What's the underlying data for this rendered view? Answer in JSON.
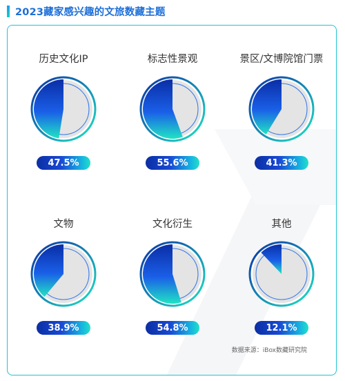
{
  "title": "2023藏家感兴趣的文旅数藏主题",
  "source": "数据来源：iBox数藏研究院",
  "colors": {
    "accent": "#1c6fd8",
    "border": "#22c2d2",
    "pie_dark": "#0a2ea6",
    "pie_blue": "#1a5fe8",
    "pie_teal": "#20e3c4",
    "pie_rest": "#e4e4e4"
  },
  "chart_data": {
    "type": "pie",
    "title": "2023藏家感兴趣的文旅数藏主题",
    "items": [
      {
        "label": "历史文化IP",
        "value": 47.5,
        "value_label": "47.5%"
      },
      {
        "label": "标志性景观",
        "value": 55.6,
        "value_label": "55.6%"
      },
      {
        "label": "景区/文博院馆门票",
        "value": 41.3,
        "value_label": "41.3%"
      },
      {
        "label": "文物",
        "value": 38.9,
        "value_label": "38.9%"
      },
      {
        "label": "文化衍生",
        "value": 54.8,
        "value_label": "54.8%"
      },
      {
        "label": "其他",
        "value": 12.1,
        "value_label": "12.1%"
      }
    ]
  }
}
